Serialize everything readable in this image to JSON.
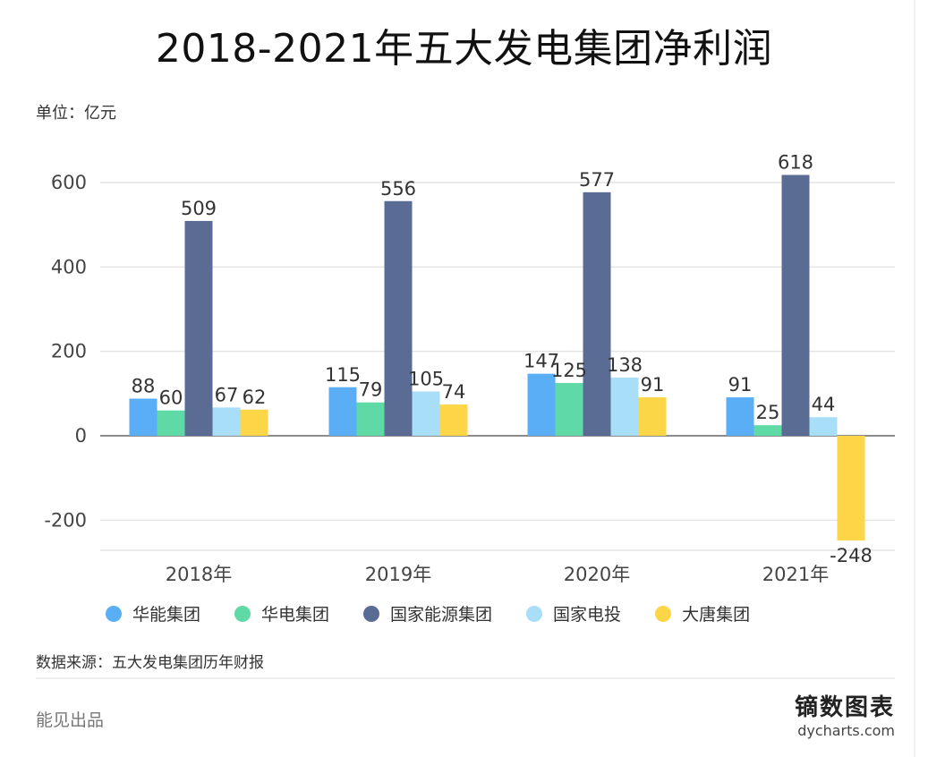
{
  "title": "2018-2021年五大发电集团净利润",
  "unit_label": "单位：亿元",
  "source_label": "数据来源：五大发电集团历年财报",
  "maker_label": "能见出品",
  "brand": {
    "name": "镝数图表",
    "url": "dycharts.com"
  },
  "chart_data": {
    "type": "bar",
    "title": "2018-2021年五大发电集团净利润",
    "xlabel": "",
    "ylabel": "",
    "unit": "亿元",
    "categories": [
      "2018年",
      "2019年",
      "2020年",
      "2021年"
    ],
    "ylim": [
      -250,
      650
    ],
    "yticks": [
      -200,
      0,
      200,
      400,
      600
    ],
    "grid": true,
    "legend_position": "bottom",
    "series": [
      {
        "name": "华能集团",
        "color": "#5aaef5",
        "values": [
          88,
          115,
          147,
          91
        ]
      },
      {
        "name": "华电集团",
        "color": "#5fd9a5",
        "values": [
          60,
          79,
          125,
          25
        ]
      },
      {
        "name": "国家能源集团",
        "color": "#5b6c94",
        "values": [
          509,
          556,
          577,
          618
        ]
      },
      {
        "name": "国家电投",
        "color": "#a9def9",
        "values": [
          67,
          105,
          138,
          44
        ]
      },
      {
        "name": "大唐集团",
        "color": "#fdd648",
        "values": [
          62,
          74,
          91,
          -248
        ]
      }
    ]
  }
}
